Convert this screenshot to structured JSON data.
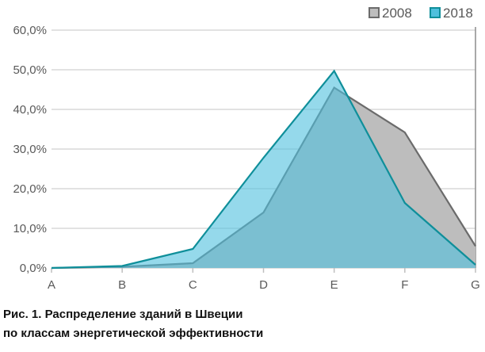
{
  "chart_data": {
    "type": "area",
    "title": "",
    "caption_line1": "Рис. 1. Распределение зданий в Швеции",
    "caption_line2": "по классам энергетической эффективности",
    "categories": [
      "A",
      "B",
      "C",
      "D",
      "E",
      "F",
      "G"
    ],
    "ylim": [
      0,
      60
    ],
    "yticks": [
      "0,0%",
      "10,0%",
      "20,0%",
      "30,0%",
      "40,0%",
      "50,0%",
      "60,0%"
    ],
    "grid": true,
    "legend_position": "top-right",
    "series": [
      {
        "name": "2008",
        "values": [
          0,
          0.3,
          1.2,
          14,
          45.5,
          34.2,
          5.5
        ],
        "fill": "#bdbdbd",
        "line": "#6b6b6b"
      },
      {
        "name": "2018",
        "values": [
          0,
          0.5,
          4.8,
          27.8,
          49.7,
          16.4,
          0.8
        ],
        "fill": "#4fc0dd",
        "line": "#0f8f9a"
      }
    ]
  }
}
